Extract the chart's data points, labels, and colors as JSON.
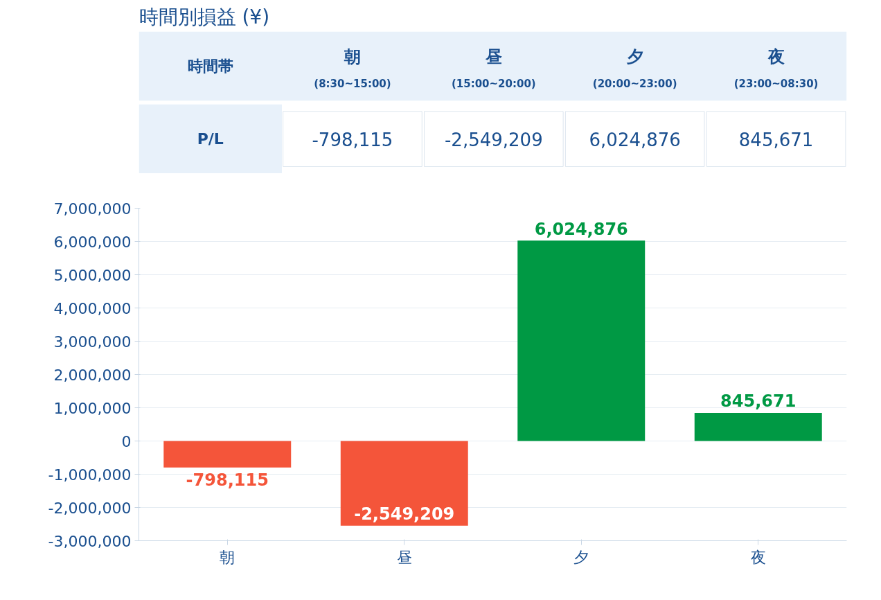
{
  "chart_data": {
    "type": "bar",
    "title": "時間別損益 (¥)",
    "categories": [
      "朝",
      "昼",
      "夕",
      "夜"
    ],
    "values": [
      -798115,
      -2549209,
      6024876,
      845671
    ],
    "colors": [
      "#f4553a",
      "#f4553a",
      "#009944",
      "#009944"
    ],
    "ylim": [
      -3000000,
      7000000
    ],
    "yticks": [
      {
        "value": -3000000,
        "label": "-3,000,000"
      },
      {
        "value": -2000000,
        "label": "-2,000,000"
      },
      {
        "value": -1000000,
        "label": "-1,000,000"
      },
      0,
      {
        "value": 1000000,
        "label": "1,000,000"
      },
      {
        "value": 2000000,
        "label": "2,000,000"
      },
      {
        "value": 3000000,
        "label": "3,000,000"
      },
      {
        "value": 4000000,
        "label": "4,000,000"
      },
      {
        "value": 5000000,
        "label": "5,000,000"
      },
      {
        "value": 6000000,
        "label": "6,000,000"
      },
      {
        "value": 7000000,
        "label": "7,000,000"
      }
    ],
    "value_labels": [
      "-798,115",
      "-2,549,209",
      "6,024,876",
      "845,671"
    ],
    "grid": "y",
    "annotations": [
      "時間帯",
      "P/L",
      "(8:30~15:00)",
      "(15:00~20:00)",
      "(20:00~23:00)",
      "(23:00~08:30)"
    ]
  }
}
